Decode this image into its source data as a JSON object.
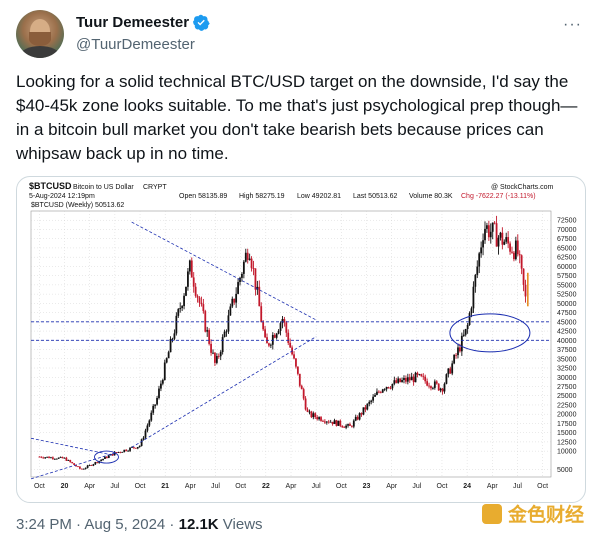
{
  "tweet": {
    "name": "Tuur Demeester",
    "handle": "@TuurDemeester",
    "more": "···",
    "text": "Looking for a solid technical BTC/USD target on the downside, I'd say the $40-45k zone looks suitable. To me that's just psychological prep though—in a bitcoin bull market you don't take bearish bets because prices can whipsaw back up in no time.",
    "time": "3:24 PM · Aug 5, 2024 · ",
    "views_count": "12.1K",
    "views_label": " Views"
  },
  "chart_header": {
    "symbol": "$BTCUSD",
    "desc": "Bitcoin to US Dollar",
    "exchange": "CRYPT",
    "date": "5-Aug-2024 12:19pm",
    "open": "Open 58135.89",
    "high": "High 58275.19",
    "low": "Low 49202.81",
    "last": "Last 50513.62",
    "volume": "Volume 80.3K",
    "chg": "Chg -7622.27 (-13.11%)",
    "credit": "@ StockCharts.com",
    "legend": "$BTCUSD (Weekly) 50513.62"
  },
  "chart_data": {
    "type": "candlestick",
    "y_ticks": [
      5000,
      10000,
      12500,
      15000,
      17500,
      20000,
      22500,
      25000,
      27500,
      30000,
      32500,
      35000,
      37500,
      40000,
      42500,
      45000,
      47500,
      50000,
      52500,
      55000,
      57500,
      60000,
      62500,
      65000,
      67500,
      70000,
      72500
    ],
    "x_ticks": [
      "Oct",
      "20",
      "Apr",
      "Jul",
      "Oct",
      "21",
      "Apr",
      "Jul",
      "Oct",
      "22",
      "Apr",
      "Jul",
      "Oct",
      "23",
      "Apr",
      "Jul",
      "Oct",
      "24",
      "Apr",
      "Jul",
      "Oct"
    ],
    "horizontal_levels": [
      45000,
      40000
    ],
    "series_price_approx": [
      {
        "date": "2019-10",
        "value": 8500
      },
      {
        "date": "2020-01",
        "value": 8000
      },
      {
        "date": "2020-03",
        "value": 5000
      },
      {
        "date": "2020-07",
        "value": 9500
      },
      {
        "date": "2020-10",
        "value": 11500
      },
      {
        "date": "2020-12",
        "value": 24000
      },
      {
        "date": "2021-01",
        "value": 33000
      },
      {
        "date": "2021-04",
        "value": 60000
      },
      {
        "date": "2021-07",
        "value": 33000
      },
      {
        "date": "2021-11",
        "value": 66000
      },
      {
        "date": "2022-01",
        "value": 38000
      },
      {
        "date": "2022-03",
        "value": 46000
      },
      {
        "date": "2022-06",
        "value": 20000
      },
      {
        "date": "2022-11",
        "value": 16500
      },
      {
        "date": "2023-03",
        "value": 27500
      },
      {
        "date": "2023-07",
        "value": 30000
      },
      {
        "date": "2023-10",
        "value": 27000
      },
      {
        "date": "2024-01",
        "value": 43000
      },
      {
        "date": "2024-03",
        "value": 71000
      },
      {
        "date": "2024-07",
        "value": 64000
      },
      {
        "date": "2024-08",
        "value": 50500
      }
    ]
  },
  "watermark": "金色财经",
  "colors": {
    "up": "#111111",
    "down": "#c2182b",
    "level": "#1a2db0",
    "accent": "#1d9bf0"
  }
}
